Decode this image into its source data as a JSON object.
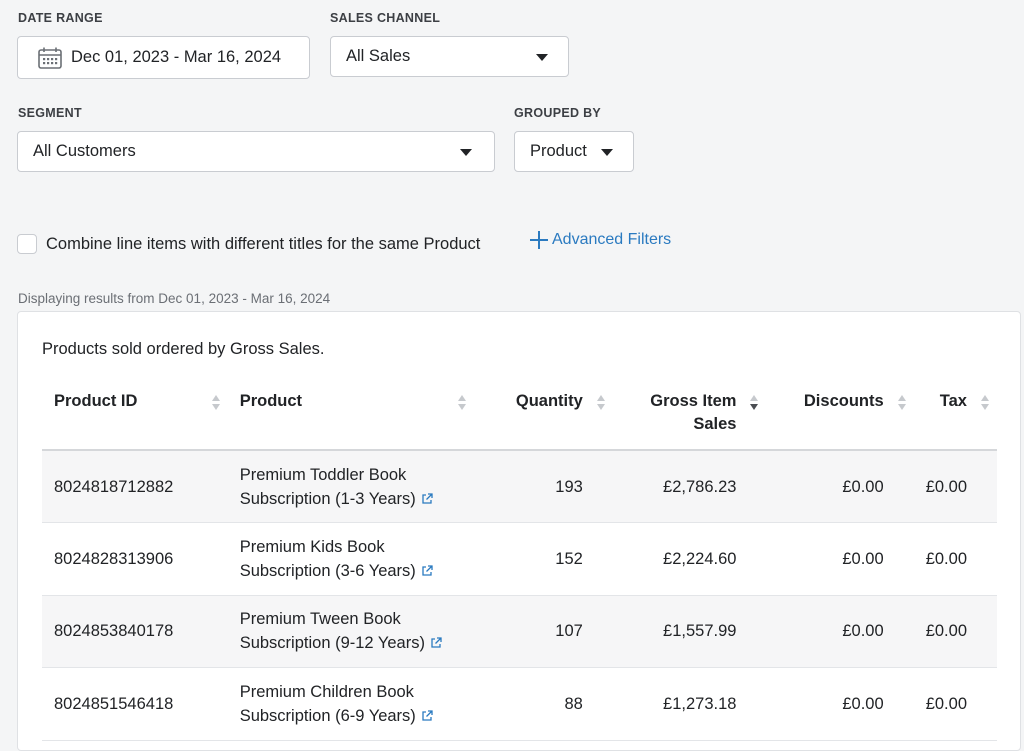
{
  "filters": {
    "date_range": {
      "label": "DATE RANGE",
      "value": "Dec 01, 2023 - Mar 16, 2024"
    },
    "sales_channel": {
      "label": "SALES CHANNEL",
      "value": "All Sales"
    },
    "segment": {
      "label": "SEGMENT",
      "value": "All Customers"
    },
    "grouped_by": {
      "label": "GROUPED BY",
      "value": "Product"
    }
  },
  "combine_checkbox": {
    "label": "Combine line items with different titles for the same Product",
    "checked": false
  },
  "advanced_filters": {
    "label": "Advanced Filters",
    "icon": "plus-icon",
    "color": "#2a7ac0"
  },
  "results_caption": "Displaying results from Dec 01, 2023 - Mar 16, 2024",
  "table": {
    "description": "Products sold ordered by Gross Sales.",
    "columns": [
      "Product ID",
      "Product",
      "Quantity",
      "Gross Item Sales",
      "Discounts",
      "Tax"
    ],
    "sorted_column": "Gross Item Sales",
    "sort_direction": "descending",
    "rows": [
      {
        "id": "8024818712882",
        "product": "Premium Toddler Book Subscription (1-3 Years)",
        "quantity": "193",
        "gross": "£2,786.23",
        "discounts": "£0.00",
        "tax": "£0.00"
      },
      {
        "id": "8024828313906",
        "product": "Premium Kids Book Subscription (3-6 Years)",
        "quantity": "152",
        "gross": "£2,224.60",
        "discounts": "£0.00",
        "tax": "£0.00"
      },
      {
        "id": "8024853840178",
        "product": "Premium Tween Book Subscription (9-12 Years)",
        "quantity": "107",
        "gross": "£1,557.99",
        "discounts": "£0.00",
        "tax": "£0.00"
      },
      {
        "id": "8024851546418",
        "product": "Premium Children Book Subscription (6-9 Years)",
        "quantity": "88",
        "gross": "£1,273.18",
        "discounts": "£0.00",
        "tax": "£0.00"
      }
    ]
  },
  "colors": {
    "link": "#2a7ac0",
    "border": "#c9ccd1",
    "alt_row": "#f6f6f7"
  }
}
